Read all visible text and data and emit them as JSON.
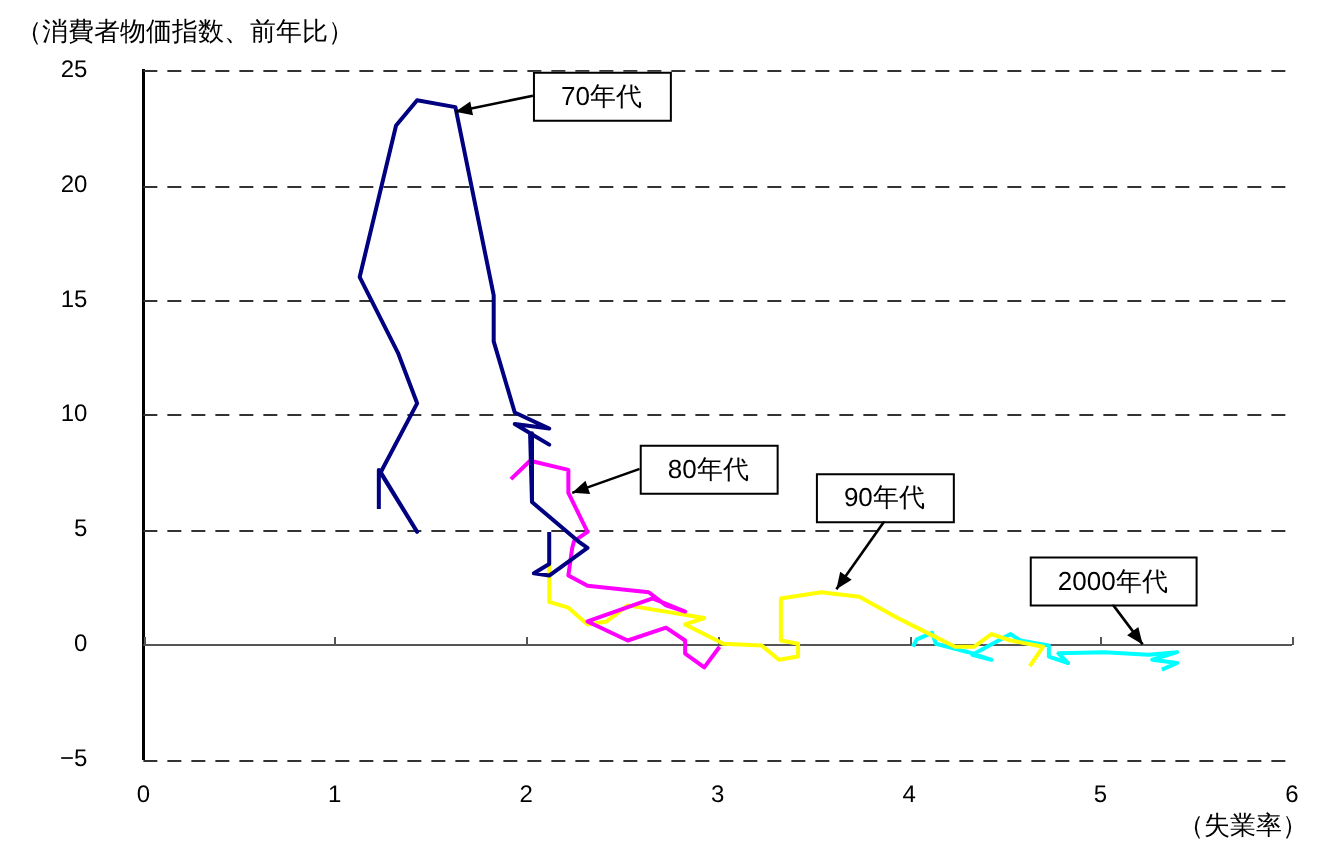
{
  "chart_data": {
    "type": "line",
    "ylabel": "（消費者物価指数、前年比）",
    "xlabel": "（失業率）",
    "xlim": [
      0,
      6
    ],
    "xticks": [
      0,
      1,
      2,
      3,
      4,
      5,
      6
    ],
    "ylim": [
      -5,
      25
    ],
    "yticks": [
      -5,
      0,
      5,
      10,
      15,
      20,
      25
    ],
    "grid": "y",
    "legend": false,
    "marker": "none",
    "line_style": "solid",
    "series": [
      {
        "color": "#000080",
        "x": [
          1.23,
          1.23,
          1.43,
          1.24,
          1.43,
          1.33,
          1.13,
          1.32,
          1.43,
          1.63,
          1.83,
          1.83,
          1.94,
          2.12,
          1.94,
          2.12,
          2.02,
          2.03,
          2.27,
          2.32,
          2.12,
          2.04,
          2.12,
          2.12
        ],
        "values": [
          5.9,
          7.6,
          4.9,
          7.5,
          10.5,
          12.7,
          16.0,
          22.6,
          23.7,
          23.4,
          15.2,
          13.2,
          10.1,
          9.4,
          9.6,
          8.7,
          9.2,
          6.2,
          4.5,
          4.2,
          3.0,
          3.1,
          3.5,
          4.9
        ]
      },
      {
        "color": "#ff00ff",
        "x": [
          1.92,
          2.02,
          2.22,
          2.22,
          2.32,
          2.25,
          2.24,
          2.22,
          2.32,
          2.64,
          2.73,
          2.83,
          2.66,
          2.32,
          2.53,
          2.73,
          2.83,
          2.83,
          2.93,
          3.01
        ],
        "values": [
          7.2,
          8.0,
          7.6,
          6.6,
          4.9,
          4.5,
          4.2,
          3.0,
          2.55,
          2.27,
          1.7,
          1.43,
          2.0,
          1.0,
          0.17,
          0.73,
          0.17,
          -0.4,
          -1.0,
          -0.1
        ]
      },
      {
        "color": "#ffff00",
        "x": [
          2.12,
          2.12,
          2.22,
          2.32,
          2.42,
          2.53,
          2.93,
          2.83,
          3.03,
          3.23,
          3.32,
          3.42,
          3.42,
          3.33,
          3.33,
          3.54,
          3.74,
          3.94,
          4.04,
          4.24,
          4.34,
          4.43,
          4.53,
          4.7,
          4.63
        ],
        "values": [
          3.7,
          1.85,
          1.6,
          0.87,
          1.0,
          1.7,
          1.15,
          0.87,
          0.03,
          -0.05,
          -0.67,
          -0.53,
          0.03,
          0.17,
          2.0,
          2.27,
          2.08,
          1.15,
          0.73,
          -0.1,
          -0.1,
          0.45,
          0.17,
          -0.1,
          -0.95
        ]
      },
      {
        "color": "#00ffff",
        "x": [
          4.02,
          4.04,
          4.12,
          4.14,
          4.31,
          4.43,
          4.33,
          4.53,
          4.58,
          4.73,
          4.73,
          4.83,
          4.78,
          5.02,
          5.25,
          5.4,
          5.27,
          5.4,
          5.32
        ],
        "values": [
          -0.1,
          0.22,
          0.5,
          0.03,
          -0.34,
          -0.67,
          -0.45,
          0.45,
          0.17,
          -0.05,
          -0.53,
          -0.81,
          -0.39,
          -0.34,
          -0.45,
          -0.34,
          -0.67,
          -0.81,
          -1.1
        ]
      }
    ],
    "annotations": [
      {
        "text": "70年代",
        "x": 1.63,
        "y": 23.2
      },
      {
        "text": "80年代",
        "x": 2.24,
        "y": 6.6
      },
      {
        "text": "90年代",
        "x": 3.62,
        "y": 2.4
      },
      {
        "text": "2000年代",
        "x": 5.22,
        "y": 0
      }
    ]
  }
}
